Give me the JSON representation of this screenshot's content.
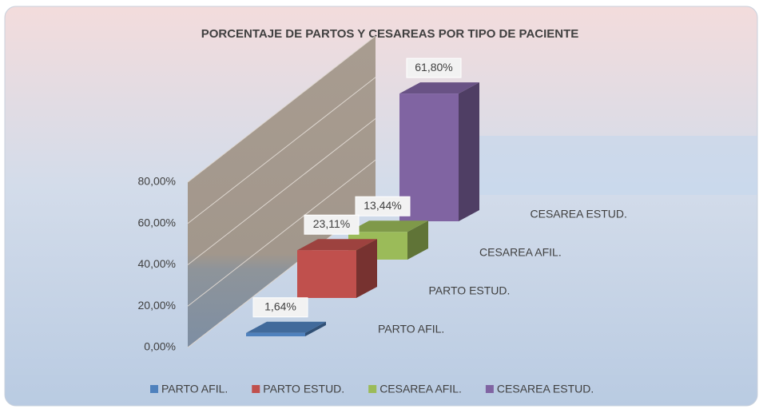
{
  "chart_data": {
    "type": "bar3d",
    "title": "PORCENTAJE DE PARTOS Y CESAREAS POR TIPO DE PACIENTE",
    "categories": [
      "PARTO AFIL.",
      "PARTO ESTUD.",
      "CESAREA AFIL.",
      "CESAREA ESTUD."
    ],
    "values": [
      1.64,
      23.11,
      13.44,
      61.8
    ],
    "value_labels": [
      "1,64%",
      "23,11%",
      "13,44%",
      "61,80%"
    ],
    "colors": [
      "#4f81bd",
      "#c0504d",
      "#9bbb59",
      "#8064a2"
    ],
    "ylim": [
      0,
      80
    ],
    "yticks": [
      {
        "value": 0,
        "label": "0,00%"
      },
      {
        "value": 20,
        "label": "20,00%"
      },
      {
        "value": 40,
        "label": "40,00%"
      },
      {
        "value": 60,
        "label": "60,00%"
      },
      {
        "value": 80,
        "label": "80,00%"
      }
    ],
    "grid": true,
    "legend": "bottom"
  }
}
